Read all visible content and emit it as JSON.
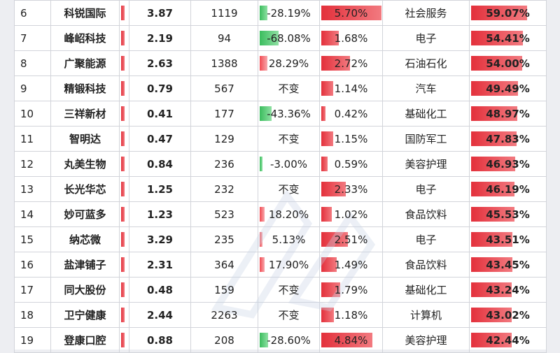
{
  "rows": [
    {
      "idx": "6",
      "name": "科锐国际",
      "v1": "3.87",
      "v2": "1119",
      "chg": "-28.19%",
      "chg_dir": "neg",
      "chg_level": 0.28,
      "rate": "5.70%",
      "rate_level": 1.0,
      "industry": "社会服务",
      "pct": "59.07%",
      "pct_level": 1.0
    },
    {
      "idx": "7",
      "name": "峰岹科技",
      "v1": "2.19",
      "v2": "94",
      "chg": "-68.08%",
      "chg_dir": "neg",
      "chg_level": 0.68,
      "rate": "1.68%",
      "rate_level": 0.29,
      "industry": "电子",
      "pct": "54.41%",
      "pct_level": 0.92
    },
    {
      "idx": "8",
      "name": "广聚能源",
      "v1": "2.63",
      "v2": "1388",
      "chg": "28.29%",
      "chg_dir": "pos",
      "chg_level": 0.28,
      "rate": "2.72%",
      "rate_level": 0.48,
      "industry": "石油石化",
      "pct": "54.00%",
      "pct_level": 0.91
    },
    {
      "idx": "9",
      "name": "精锻科技",
      "v1": "0.79",
      "v2": "567",
      "chg": "不变",
      "chg_dir": "none",
      "chg_level": 0,
      "rate": "1.14%",
      "rate_level": 0.2,
      "industry": "汽车",
      "pct": "49.49%",
      "pct_level": 0.84
    },
    {
      "idx": "10",
      "name": "三祥新材",
      "v1": "0.41",
      "v2": "177",
      "chg": "-43.36%",
      "chg_dir": "neg",
      "chg_level": 0.43,
      "rate": "0.42%",
      "rate_level": 0.07,
      "industry": "基础化工",
      "pct": "48.97%",
      "pct_level": 0.83
    },
    {
      "idx": "11",
      "name": "智明达",
      "v1": "0.47",
      "v2": "129",
      "chg": "不变",
      "chg_dir": "none",
      "chg_level": 0,
      "rate": "1.15%",
      "rate_level": 0.2,
      "industry": "国防军工",
      "pct": "47.83%",
      "pct_level": 0.81
    },
    {
      "idx": "12",
      "name": "丸美生物",
      "v1": "0.84",
      "v2": "236",
      "chg": "-3.00%",
      "chg_dir": "neg",
      "chg_level": 0.03,
      "rate": "0.59%",
      "rate_level": 0.1,
      "industry": "美容护理",
      "pct": "46.93%",
      "pct_level": 0.79
    },
    {
      "idx": "13",
      "name": "长光华芯",
      "v1": "1.25",
      "v2": "232",
      "chg": "不变",
      "chg_dir": "none",
      "chg_level": 0,
      "rate": "2.33%",
      "rate_level": 0.41,
      "industry": "电子",
      "pct": "46.19%",
      "pct_level": 0.78
    },
    {
      "idx": "14",
      "name": "妙可蓝多",
      "v1": "1.23",
      "v2": "523",
      "chg": "18.20%",
      "chg_dir": "pos",
      "chg_level": 0.18,
      "rate": "1.02%",
      "rate_level": 0.18,
      "industry": "食品饮料",
      "pct": "45.53%",
      "pct_level": 0.77
    },
    {
      "idx": "15",
      "name": "纳芯微",
      "v1": "3.29",
      "v2": "235",
      "chg": "5.13%",
      "chg_dir": "pos",
      "chg_level": 0.05,
      "rate": "2.51%",
      "rate_level": 0.44,
      "industry": "电子",
      "pct": "43.51%",
      "pct_level": 0.74
    },
    {
      "idx": "16",
      "name": "盐津铺子",
      "v1": "2.31",
      "v2": "364",
      "chg": "17.90%",
      "chg_dir": "pos",
      "chg_level": 0.18,
      "rate": "1.49%",
      "rate_level": 0.26,
      "industry": "食品饮料",
      "pct": "43.45%",
      "pct_level": 0.74
    },
    {
      "idx": "17",
      "name": "同大股份",
      "v1": "0.48",
      "v2": "159",
      "chg": "不变",
      "chg_dir": "none",
      "chg_level": 0,
      "rate": "1.79%",
      "rate_level": 0.31,
      "industry": "基础化工",
      "pct": "43.24%",
      "pct_level": 0.73
    },
    {
      "idx": "18",
      "name": "卫宁健康",
      "v1": "2.44",
      "v2": "2263",
      "chg": "不变",
      "chg_dir": "none",
      "chg_level": 0,
      "rate": "1.18%",
      "rate_level": 0.21,
      "industry": "计算机",
      "pct": "43.02%",
      "pct_level": 0.73
    },
    {
      "idx": "19",
      "name": "登康口腔",
      "v1": "0.88",
      "v2": "208",
      "chg": "-28.60%",
      "chg_dir": "neg",
      "chg_level": 0.29,
      "rate": "4.84%",
      "rate_level": 0.85,
      "industry": "美容护理",
      "pct": "42.44%",
      "pct_level": 0.72
    }
  ],
  "name_bar_level": 0.5,
  "colors": {
    "positive": "#e3303b",
    "negative": "#3bbd5e"
  }
}
